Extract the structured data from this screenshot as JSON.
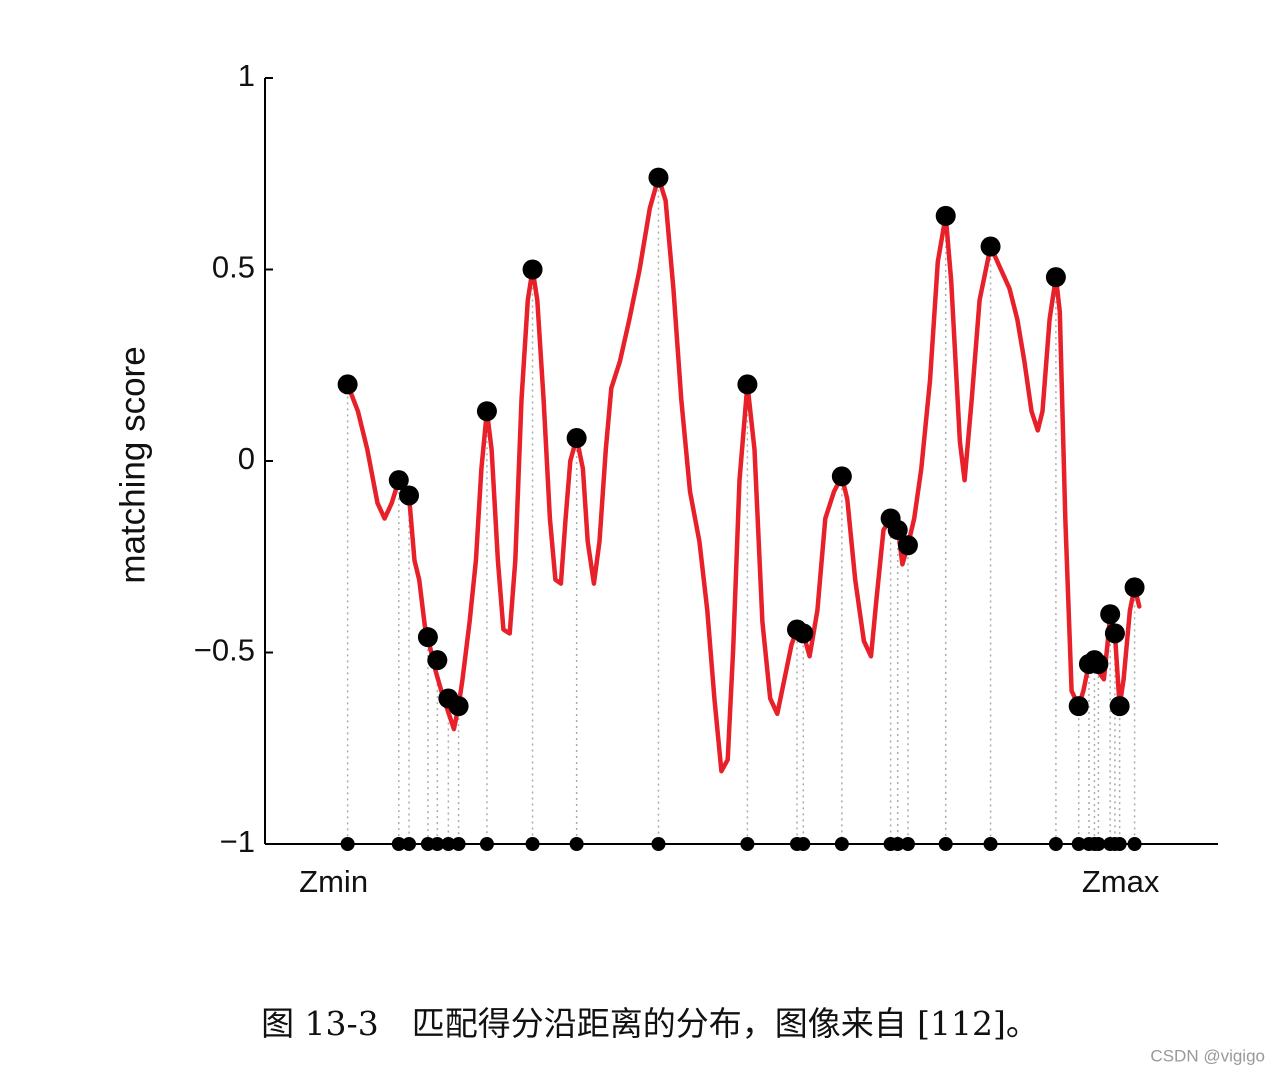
{
  "chart_data": {
    "type": "line",
    "ylabel": "matching score",
    "xlim": [
      -10.5,
      110.6
    ],
    "ylim": [
      -1,
      1
    ],
    "yticks": [
      {
        "value": -1,
        "label": "−1"
      },
      {
        "value": -0.5,
        "label": "−0.5"
      },
      0,
      0.5,
      1
    ],
    "xticks": [
      {
        "value": 0,
        "label": "Zmin"
      },
      {
        "value": 100,
        "label": "Zmax"
      }
    ],
    "series": [
      {
        "color": "#e8202a",
        "x": [
          0,
          1.3,
          2.5,
          3.8,
          4.7,
          5.6,
          6.5,
          7.2,
          7.8,
          8.5,
          9.1,
          9.8,
          10.4,
          11.2,
          11.9,
          12.7,
          13.5,
          14.1,
          14.6,
          15.5,
          16.3,
          17.0,
          17.7,
          18.3,
          19.1,
          19.8,
          20.6,
          21.3,
          22.1,
          22.9,
          23.5,
          24.1,
          24.9,
          25.7,
          26.4,
          27.1,
          27.7,
          28.3,
          29.1,
          29.9,
          30.5,
          31.3,
          32.0,
          32.8,
          33.5,
          34.6,
          35.8,
          37.1,
          38.4,
          39.5,
          40.4,
          41.4,
          42.4,
          43.5,
          44.7,
          45.7,
          46.6,
          47.5,
          48.3,
          49.0,
          49.8,
          50.8,
          51.7,
          52.7,
          53.7,
          54.6,
          55.5,
          56.4,
          57.1,
          57.9,
          58.7,
          59.7,
          60.7,
          61.8,
          62.8,
          63.5,
          64.5,
          65.6,
          66.5,
          67.2,
          68.1,
          69.0,
          69.9,
          70.5,
          71.2,
          72.0,
          72.9,
          74.0,
          75.0,
          76.0,
          76.7,
          77.8,
          78.4,
          79.3,
          80.3,
          81.7,
          82.8,
          84.1,
          85.1,
          86.0,
          86.9,
          87.7,
          88.3,
          89.2,
          90.0,
          90.5,
          91.2,
          92.0,
          92.9,
          93.5,
          94.2,
          94.9,
          95.4,
          96.1,
          96.6,
          96.9,
          97.5,
          98.1,
          98.6,
          99.4,
          100,
          100.6
        ],
        "values": [
          0.2,
          0.13,
          0.03,
          -0.11,
          -0.15,
          -0.11,
          -0.05,
          -0.08,
          -0.09,
          -0.26,
          -0.31,
          -0.43,
          -0.48,
          -0.55,
          -0.6,
          -0.65,
          -0.7,
          -0.64,
          -0.57,
          -0.42,
          -0.26,
          -0.02,
          0.13,
          0.03,
          -0.26,
          -0.44,
          -0.45,
          -0.26,
          0.16,
          0.42,
          0.5,
          0.42,
          0.16,
          -0.15,
          -0.31,
          -0.32,
          -0.15,
          0.0,
          0.06,
          -0.02,
          -0.21,
          -0.32,
          -0.21,
          0.03,
          0.19,
          0.26,
          0.37,
          0.5,
          0.66,
          0.74,
          0.68,
          0.45,
          0.16,
          -0.08,
          -0.21,
          -0.39,
          -0.62,
          -0.81,
          -0.78,
          -0.49,
          -0.05,
          0.2,
          0.03,
          -0.42,
          -0.62,
          -0.66,
          -0.57,
          -0.48,
          -0.44,
          -0.45,
          -0.51,
          -0.39,
          -0.15,
          -0.08,
          -0.04,
          -0.1,
          -0.31,
          -0.47,
          -0.51,
          -0.36,
          -0.18,
          -0.15,
          -0.17,
          -0.27,
          -0.22,
          -0.15,
          -0.02,
          0.21,
          0.52,
          0.64,
          0.47,
          0.05,
          -0.05,
          0.16,
          0.42,
          0.56,
          0.51,
          0.45,
          0.37,
          0.26,
          0.13,
          0.08,
          0.13,
          0.37,
          0.48,
          0.39,
          -0.15,
          -0.6,
          -0.64,
          -0.6,
          -0.53,
          -0.52,
          -0.55,
          -0.57,
          -0.47,
          -0.4,
          -0.45,
          -0.64,
          -0.57,
          -0.39,
          -0.33,
          -0.38
        ]
      },
      {
        "color": "#000000",
        "marker": true,
        "x": [
          0,
          6.5,
          7.8,
          10.2,
          11.4,
          12.8,
          14.1,
          17.7,
          23.5,
          29.1,
          39.5,
          50.8,
          57.1,
          57.9,
          62.8,
          69.0,
          69.9,
          71.2,
          76.0,
          81.7,
          90.0,
          92.9,
          94.2,
          94.9,
          95.4,
          96.9,
          97.5,
          98.1,
          100
        ],
        "values": [
          0.2,
          -0.05,
          -0.09,
          -0.46,
          -0.52,
          -0.62,
          -0.64,
          0.13,
          0.5,
          0.06,
          0.74,
          0.2,
          -0.44,
          -0.45,
          -0.04,
          -0.15,
          -0.18,
          -0.22,
          0.64,
          0.56,
          0.48,
          -0.64,
          -0.53,
          -0.52,
          -0.53,
          -0.4,
          -0.45,
          -0.64,
          -0.33
        ]
      }
    ]
  },
  "caption": "图 13-3　匹配得分沿距离的分布，图像来自 [112]。",
  "watermark": "CSDN @vigigo"
}
